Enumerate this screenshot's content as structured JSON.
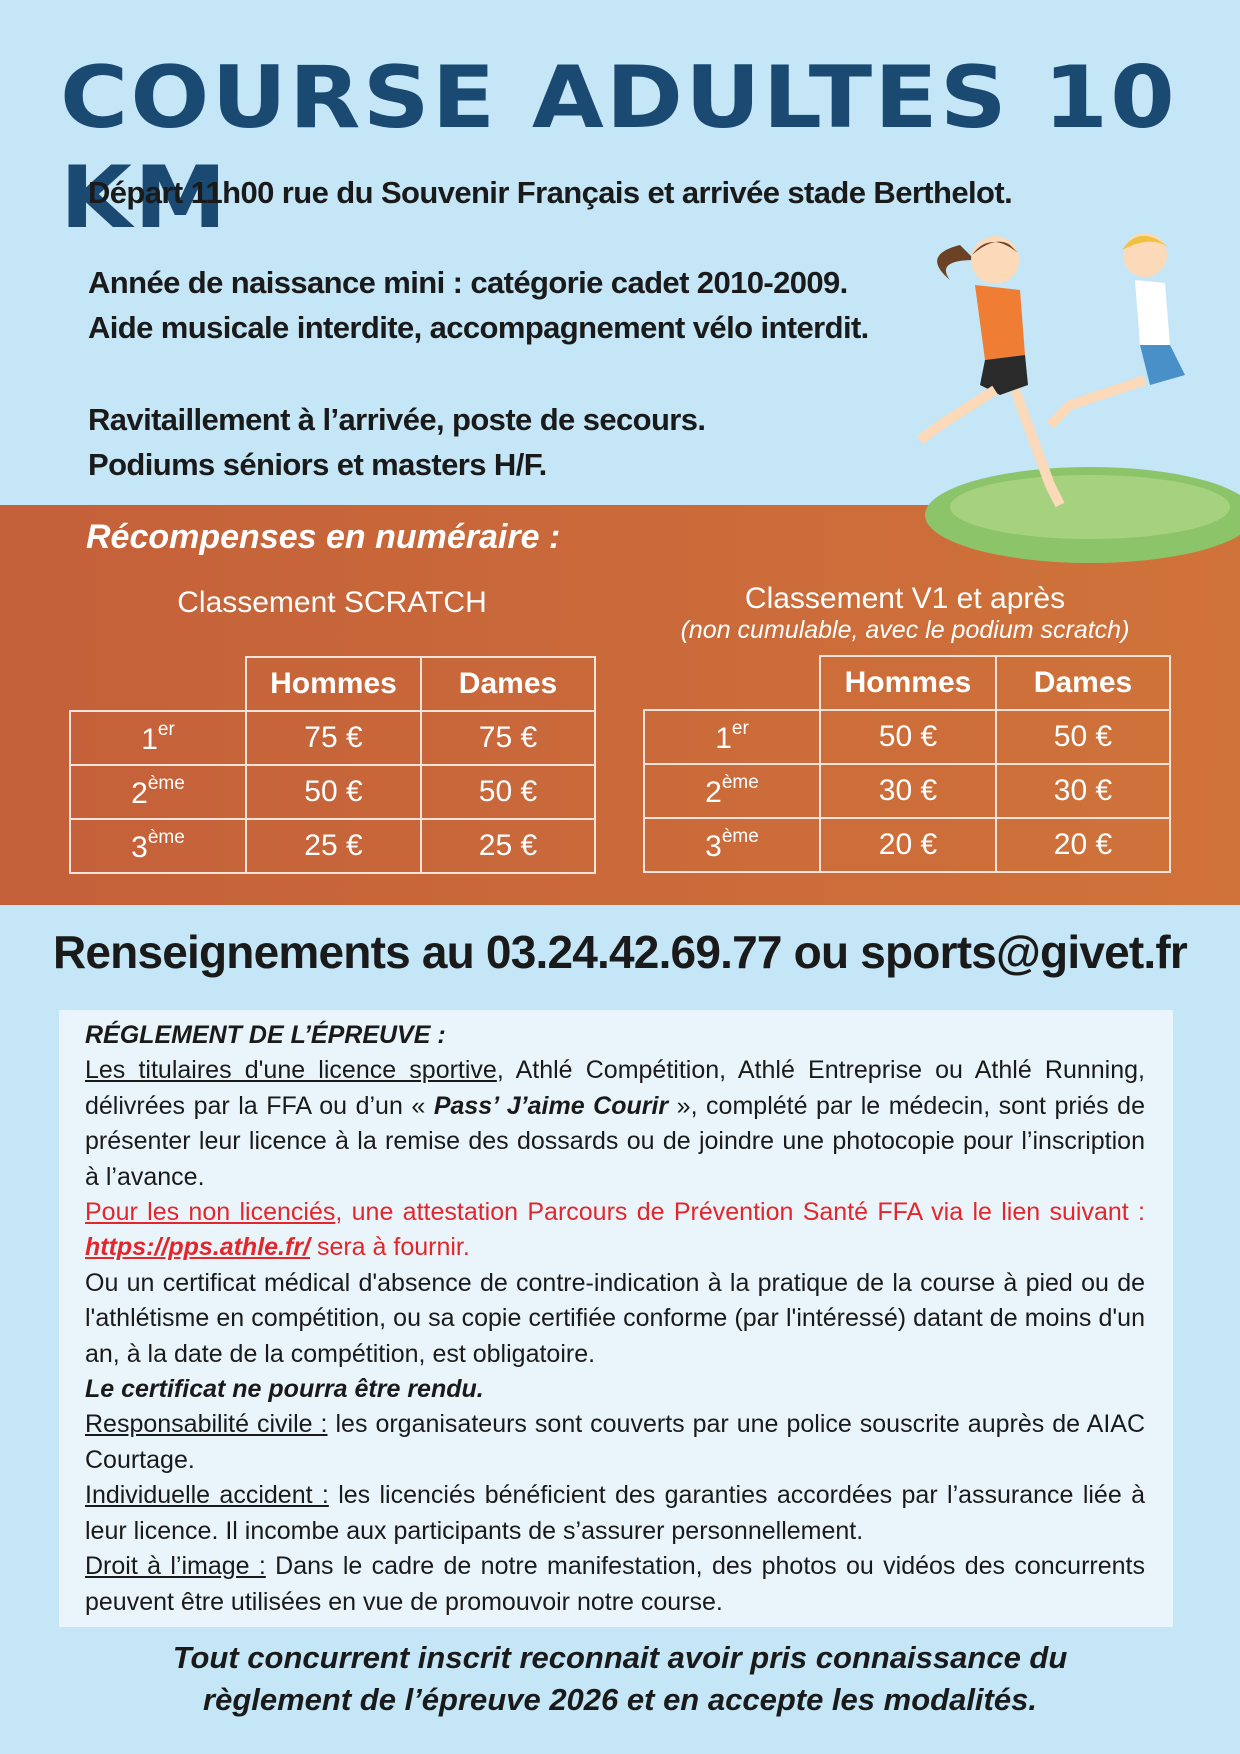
{
  "title": "COURSE ADULTES 10 KM",
  "info": [
    "Départ 11h00 rue du Souvenir Français et arrivée  stade Berthelot.",
    "Année de naissance mini : catégorie cadet 2010-2009.",
    "Aide musicale interdite, accompagnement vélo interdit.",
    "Ravitaillement à l’arrivée, poste de secours.",
    "Podiums séniors et masters H/F."
  ],
  "rewards": {
    "heading": "Récompenses en numéraire :",
    "scratch": {
      "title": "Classement SCRATCH",
      "headers": [
        "Hommes",
        "Dames"
      ],
      "rows": [
        {
          "rank": "1",
          "sup": "er",
          "h": "75 €",
          "d": "75 €"
        },
        {
          "rank": "2",
          "sup": "ème",
          "h": "50 €",
          "d": "50 €"
        },
        {
          "rank": "3",
          "sup": "ème",
          "h": "25 €",
          "d": "25 €"
        }
      ]
    },
    "v1": {
      "title": "Classement V1 et après",
      "subtitle": "(non cumulable, avec le podium scratch)",
      "headers": [
        "Hommes",
        "Dames"
      ],
      "rows": [
        {
          "rank": "1",
          "sup": "er",
          "h": "50 €",
          "d": "50 €"
        },
        {
          "rank": "2",
          "sup": "ème",
          "h": "30 €",
          "d": "30 €"
        },
        {
          "rank": "3",
          "sup": "ème",
          "h": "20 €",
          "d": "20 €"
        }
      ]
    }
  },
  "contact": "Renseignements au 03.24.42.69.77 ou sports@givet.fr",
  "rules": {
    "heading": "RÉGLEMENT DE L’ÉPREUVE :",
    "p1_u": "Les titulaires d'une licence sportive",
    "p1_a": ", Athlé Compétition, Athlé Entreprise ou Athlé Running, délivrées par la FFA ou d’un « ",
    "p1_b": "Pass’ J’aime Courir",
    "p1_c": " », complété par le médecin, sont priés de présenter leur licence à la remise des dossards ou de joindre une photocopie pour l’inscription à l’avance.",
    "p2_u": "Pour les non licenciés",
    "p2_a": ", une attestation Parcours de Prévention Santé FFA via le lien suivant : ",
    "p2_link": "https://pps.athle.fr/",
    "p2_b": " sera à fournir.",
    "p3": "Ou un certificat médical d'absence de contre-indication à la pratique de la course à pied ou de l'athlétisme en compétition, ou sa copie certifiée conforme (par l'intéressé) datant de moins d'un an, à la date de la compétition, est obligatoire.",
    "p4": "Le certificat ne pourra être rendu.",
    "p5_u": "Responsabilité civile :",
    "p5": " les organisateurs sont couverts par une police souscrite auprès de AIAC Courtage.",
    "p6_u": "Individuelle accident :",
    "p6": " les licenciés bénéficient des garanties accordées par l’assurance liée à leur licence. Il incombe aux participants de s’assurer personnellement.",
    "p7_u": "Droit à l’image :",
    "p7": " Dans le cadre de notre manifestation, des photos ou vidéos des concurrents peuvent être utilisées en vue de promouvoir notre course."
  },
  "footer": [
    "Tout concurrent inscrit reconnait avoir pris connaissance du",
    "règlement de l’épreuve 2026 et en accepte les modalités."
  ],
  "colors": {
    "background": "#c4e6f6",
    "title": "#1a4a72",
    "band": "#c9683a",
    "red": "#e3262b"
  }
}
